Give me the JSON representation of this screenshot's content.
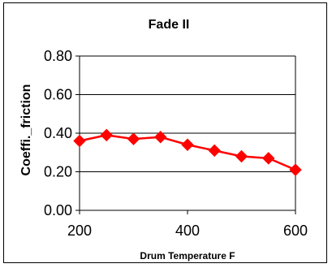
{
  "chart_data": {
    "type": "line",
    "title": "Fade II",
    "xlabel": "Drum Temperature F",
    "ylabel": "Coeffi._friction",
    "x": [
      200,
      250,
      300,
      350,
      400,
      450,
      500,
      550,
      600
    ],
    "series": [
      {
        "values": [
          0.36,
          0.39,
          0.37,
          0.38,
          0.34,
          0.31,
          0.28,
          0.27,
          0.21
        ]
      }
    ],
    "xlim": [
      200,
      600
    ],
    "ylim": [
      0,
      0.8
    ],
    "xticks": [
      "200",
      "400",
      "600"
    ],
    "yticks": [
      "0.00",
      "0.20",
      "0.40",
      "0.60",
      "0.80"
    ],
    "grid": "horizontal",
    "colors": {
      "series": "#ff0000",
      "marker": "#ff0000",
      "axis": "#000000"
    }
  }
}
